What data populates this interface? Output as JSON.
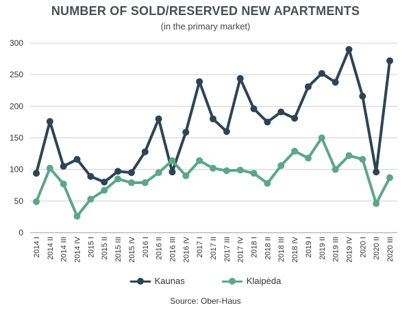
{
  "chart_data": {
    "type": "line",
    "title": "NUMBER OF SOLD/RESERVED NEW APARTMENTS",
    "subtitle": "(in the primary market)",
    "source": "Source: Ober-Haus",
    "categories": [
      "2014 I",
      "2014 II",
      "2014 III",
      "2014 IV",
      "2015 I",
      "2015 II",
      "2015 III",
      "2015 IV",
      "2016 I",
      "2016 II",
      "2016 III",
      "2016 IV",
      "2017 I",
      "2017 II",
      "2017 III",
      "2017 IV",
      "2018 I",
      "2018 II",
      "2018 III",
      "2018 IV",
      "2019 I",
      "2019 II",
      "2019 III",
      "2019 IV",
      "2020 I",
      "2020 II",
      "2020 III"
    ],
    "yticks": [
      "0",
      "50",
      "100",
      "150",
      "200",
      "250",
      "300"
    ],
    "ylim": [
      0,
      300
    ],
    "grid": true,
    "legend_position": "bottom",
    "series": [
      {
        "name": "Kaunas",
        "color": "#2d4457",
        "values": [
          94,
          176,
          105,
          116,
          89,
          80,
          97,
          95,
          128,
          180,
          96,
          159,
          239,
          180,
          160,
          244,
          196,
          175,
          191,
          181,
          231,
          252,
          238,
          290,
          216,
          96,
          272
        ]
      },
      {
        "name": "Klaipėda",
        "color": "#5ba787",
        "values": [
          49,
          102,
          77,
          26,
          53,
          67,
          85,
          79,
          79,
          95,
          114,
          90,
          114,
          102,
          98,
          99,
          94,
          78,
          106,
          129,
          118,
          150,
          100,
          122,
          116,
          46,
          87
        ]
      }
    ]
  }
}
